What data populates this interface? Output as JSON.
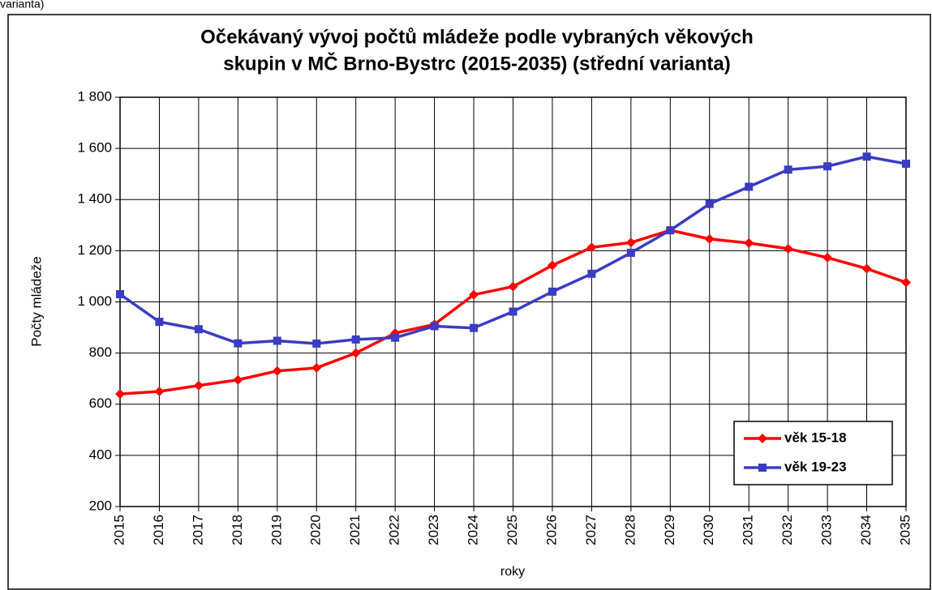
{
  "caption": "varianta)",
  "chart_data": {
    "type": "line",
    "title": [
      "Očekávaný vývoj počtů mládeže podle vybraných věkových",
      "skupin v MČ Brno-Bystrc (2015-2035) (střední varianta)"
    ],
    "xlabel": "roky",
    "ylabel": "Počty mládeže",
    "categories": [
      "2015",
      "2016",
      "2017",
      "2018",
      "2019",
      "2020",
      "2021",
      "2022",
      "2023",
      "2024",
      "2025",
      "2026",
      "2027",
      "2028",
      "2029",
      "2030",
      "2031",
      "2032",
      "2033",
      "2034",
      "2035"
    ],
    "series": [
      {
        "name": "věk 15-18",
        "color": "#ff0000",
        "marker": "diamond",
        "values": [
          640,
          650,
          673,
          695,
          730,
          742,
          800,
          878,
          912,
          1028,
          1060,
          1143,
          1213,
          1232,
          1280,
          1246,
          1230,
          1208,
          1173,
          1130,
          1076
        ]
      },
      {
        "name": "věk 19-23",
        "color": "#3b3bc4",
        "marker": "square",
        "values": [
          1030,
          922,
          893,
          838,
          848,
          837,
          853,
          860,
          905,
          898,
          962,
          1040,
          1110,
          1192,
          1280,
          1383,
          1450,
          1517,
          1530,
          1568,
          1540
        ]
      }
    ],
    "ylim": [
      200,
      1800
    ],
    "yticks": [
      200,
      400,
      600,
      800,
      {
        "value": 1000,
        "label": "1 000"
      },
      {
        "value": 1200,
        "label": "1 200"
      },
      {
        "value": 1400,
        "label": "1 400"
      },
      {
        "value": 1600,
        "label": "1 600"
      },
      {
        "value": 1800,
        "label": "1 800"
      }
    ],
    "grid": true,
    "legend": "lower right"
  }
}
